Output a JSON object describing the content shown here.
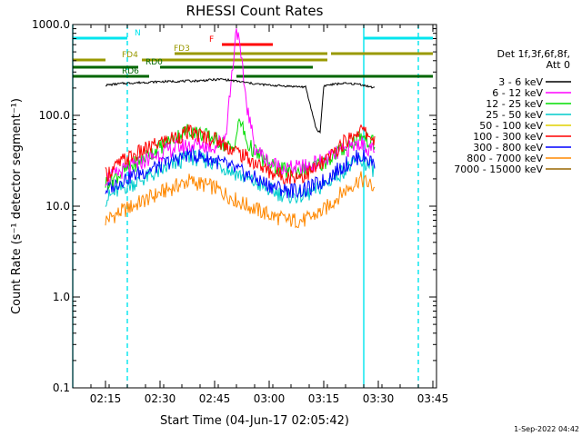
{
  "chart_data": {
    "type": "line",
    "title": "RHESSI Count Rates",
    "xlabel": "Start Time (04-Jun-17 02:05:42)",
    "ylabel": "Count Rate (s⁻¹ detector segment⁻¹)",
    "footer": "1-Sep-2022 04:42",
    "yscale": "log",
    "xlim": [
      "02:06",
      "03:46"
    ],
    "ylim": [
      0.1,
      1000.0
    ],
    "x_ticks": [
      "02:15",
      "02:30",
      "02:45",
      "03:00",
      "03:15",
      "03:30",
      "03:45"
    ],
    "y_ticks": [
      "0.1",
      "1.0",
      "10.0",
      "100.0",
      "1000.0"
    ],
    "legend_header": [
      "Det 1f,3f,6f,8f,",
      "Att 0"
    ],
    "legend_placement": "right",
    "series": [
      {
        "name": "3 - 6 keV",
        "color": "#000000",
        "x": [
          "02:15",
          "02:20",
          "02:30",
          "02:40",
          "02:47",
          "02:52",
          "02:55",
          "03:00",
          "03:05",
          "03:10",
          "03:13",
          "03:14",
          "03:15",
          "03:16",
          "03:20",
          "03:25",
          "03:29"
        ],
        "y": [
          215,
          225,
          235,
          240,
          250,
          235,
          225,
          215,
          210,
          205,
          70,
          65,
          210,
          215,
          225,
          220,
          200
        ]
      },
      {
        "name": "6 - 12 keV",
        "color": "#ff00ff",
        "x": [
          "02:15",
          "02:22",
          "02:30",
          "02:35",
          "02:40",
          "02:45",
          "02:48",
          "02:50",
          "02:51",
          "02:52",
          "02:54",
          "02:56",
          "03:00",
          "03:05",
          "03:10",
          "03:15",
          "03:20",
          "03:25",
          "03:28",
          "03:29"
        ],
        "y": [
          20,
          27,
          38,
          45,
          48,
          45,
          60,
          350,
          980,
          500,
          120,
          45,
          30,
          26,
          27,
          32,
          40,
          50,
          42,
          38
        ]
      },
      {
        "name": "12 - 25 keV",
        "color": "#00dd00",
        "x": [
          "02:15",
          "02:20",
          "02:30",
          "02:38",
          "02:45",
          "02:50",
          "02:52",
          "02:54",
          "03:00",
          "03:05",
          "03:10",
          "03:15",
          "03:20",
          "03:25",
          "03:29"
        ],
        "y": [
          18,
          24,
          45,
          70,
          55,
          42,
          90,
          48,
          28,
          24,
          25,
          30,
          42,
          60,
          48
        ]
      },
      {
        "name": "25 - 50 keV",
        "color": "#00cccc",
        "x": [
          "02:15",
          "02:20",
          "02:30",
          "02:38",
          "02:45",
          "02:52",
          "03:00",
          "03:05",
          "03:10",
          "03:15",
          "03:20",
          "03:25",
          "03:29"
        ],
        "y": [
          12,
          16,
          24,
          35,
          30,
          22,
          15,
          13,
          13,
          17,
          24,
          32,
          25
        ]
      },
      {
        "name": "50 - 100 keV",
        "color": "#e0d000",
        "x": [
          "02:15",
          "02:29",
          "03:29"
        ],
        "y": [
          0.1,
          0.1,
          0.1
        ]
      },
      {
        "name": "100 - 300 keV",
        "color": "#ff0000",
        "x": [
          "02:15",
          "02:20",
          "02:30",
          "02:38",
          "02:45",
          "02:52",
          "03:00",
          "03:05",
          "03:10",
          "03:15",
          "03:20",
          "03:25",
          "03:29"
        ],
        "y": [
          22,
          32,
          50,
          65,
          55,
          38,
          24,
          21,
          22,
          30,
          48,
          70,
          55
        ]
      },
      {
        "name": "300 - 800 keV",
        "color": "#0000ff",
        "x": [
          "02:15",
          "02:20",
          "02:30",
          "02:38",
          "02:45",
          "02:52",
          "03:00",
          "03:05",
          "03:10",
          "03:15",
          "03:20",
          "03:25",
          "03:29"
        ],
        "y": [
          15,
          20,
          28,
          38,
          32,
          24,
          17,
          15,
          15,
          19,
          27,
          36,
          30
        ]
      },
      {
        "name": "800 - 7000 keV",
        "color": "#ff8800",
        "x": [
          "02:15",
          "02:20",
          "02:30",
          "02:38",
          "02:45",
          "02:52",
          "03:00",
          "03:05",
          "03:10",
          "03:15",
          "03:20",
          "03:25",
          "03:29"
        ],
        "y": [
          7,
          9,
          14,
          19,
          16,
          11,
          8,
          7,
          7,
          9,
          14,
          20,
          16
        ]
      },
      {
        "name": "7000 - 15000 keV",
        "color": "#996600",
        "x": [
          "02:15",
          "02:29",
          "03:29"
        ],
        "y": [
          0.1,
          0.1,
          0.1
        ]
      }
    ],
    "flag_bars": [
      {
        "label": "N",
        "color": "#00e5ee",
        "segments": [
          [
            "02:06",
            "02:21"
          ],
          [
            "03:26",
            "03:45"
          ]
        ]
      },
      {
        "label": "F",
        "color": "#ff0000",
        "segments": [
          [
            "02:47",
            "03:01"
          ]
        ]
      },
      {
        "label": "FD3",
        "color": "#999900",
        "segments": [
          [
            "02:34",
            "03:16"
          ],
          [
            "03:17",
            "03:45"
          ]
        ]
      },
      {
        "label": "FD4",
        "color": "#999900",
        "segments": [
          [
            "02:06",
            "02:15"
          ],
          [
            "02:25",
            "03:16"
          ]
        ]
      },
      {
        "label": "RD0",
        "color": "#006600",
        "segments": [
          [
            "02:06",
            "02:24"
          ],
          [
            "02:30",
            "03:12"
          ]
        ]
      },
      {
        "label": "RD6",
        "color": "#006600",
        "segments": [
          [
            "02:06",
            "02:27"
          ],
          [
            "02:51",
            "03:45"
          ]
        ]
      }
    ],
    "vertical_markers": [
      {
        "time": "02:06",
        "color": "#00e5ee",
        "style": "solid"
      },
      {
        "time": "02:21",
        "color": "#00e5ee",
        "style": "dashed"
      },
      {
        "time": "03:26",
        "color": "#00e5ee",
        "style": "solid"
      },
      {
        "time": "03:41",
        "color": "#00e5ee",
        "style": "dashed"
      }
    ]
  }
}
